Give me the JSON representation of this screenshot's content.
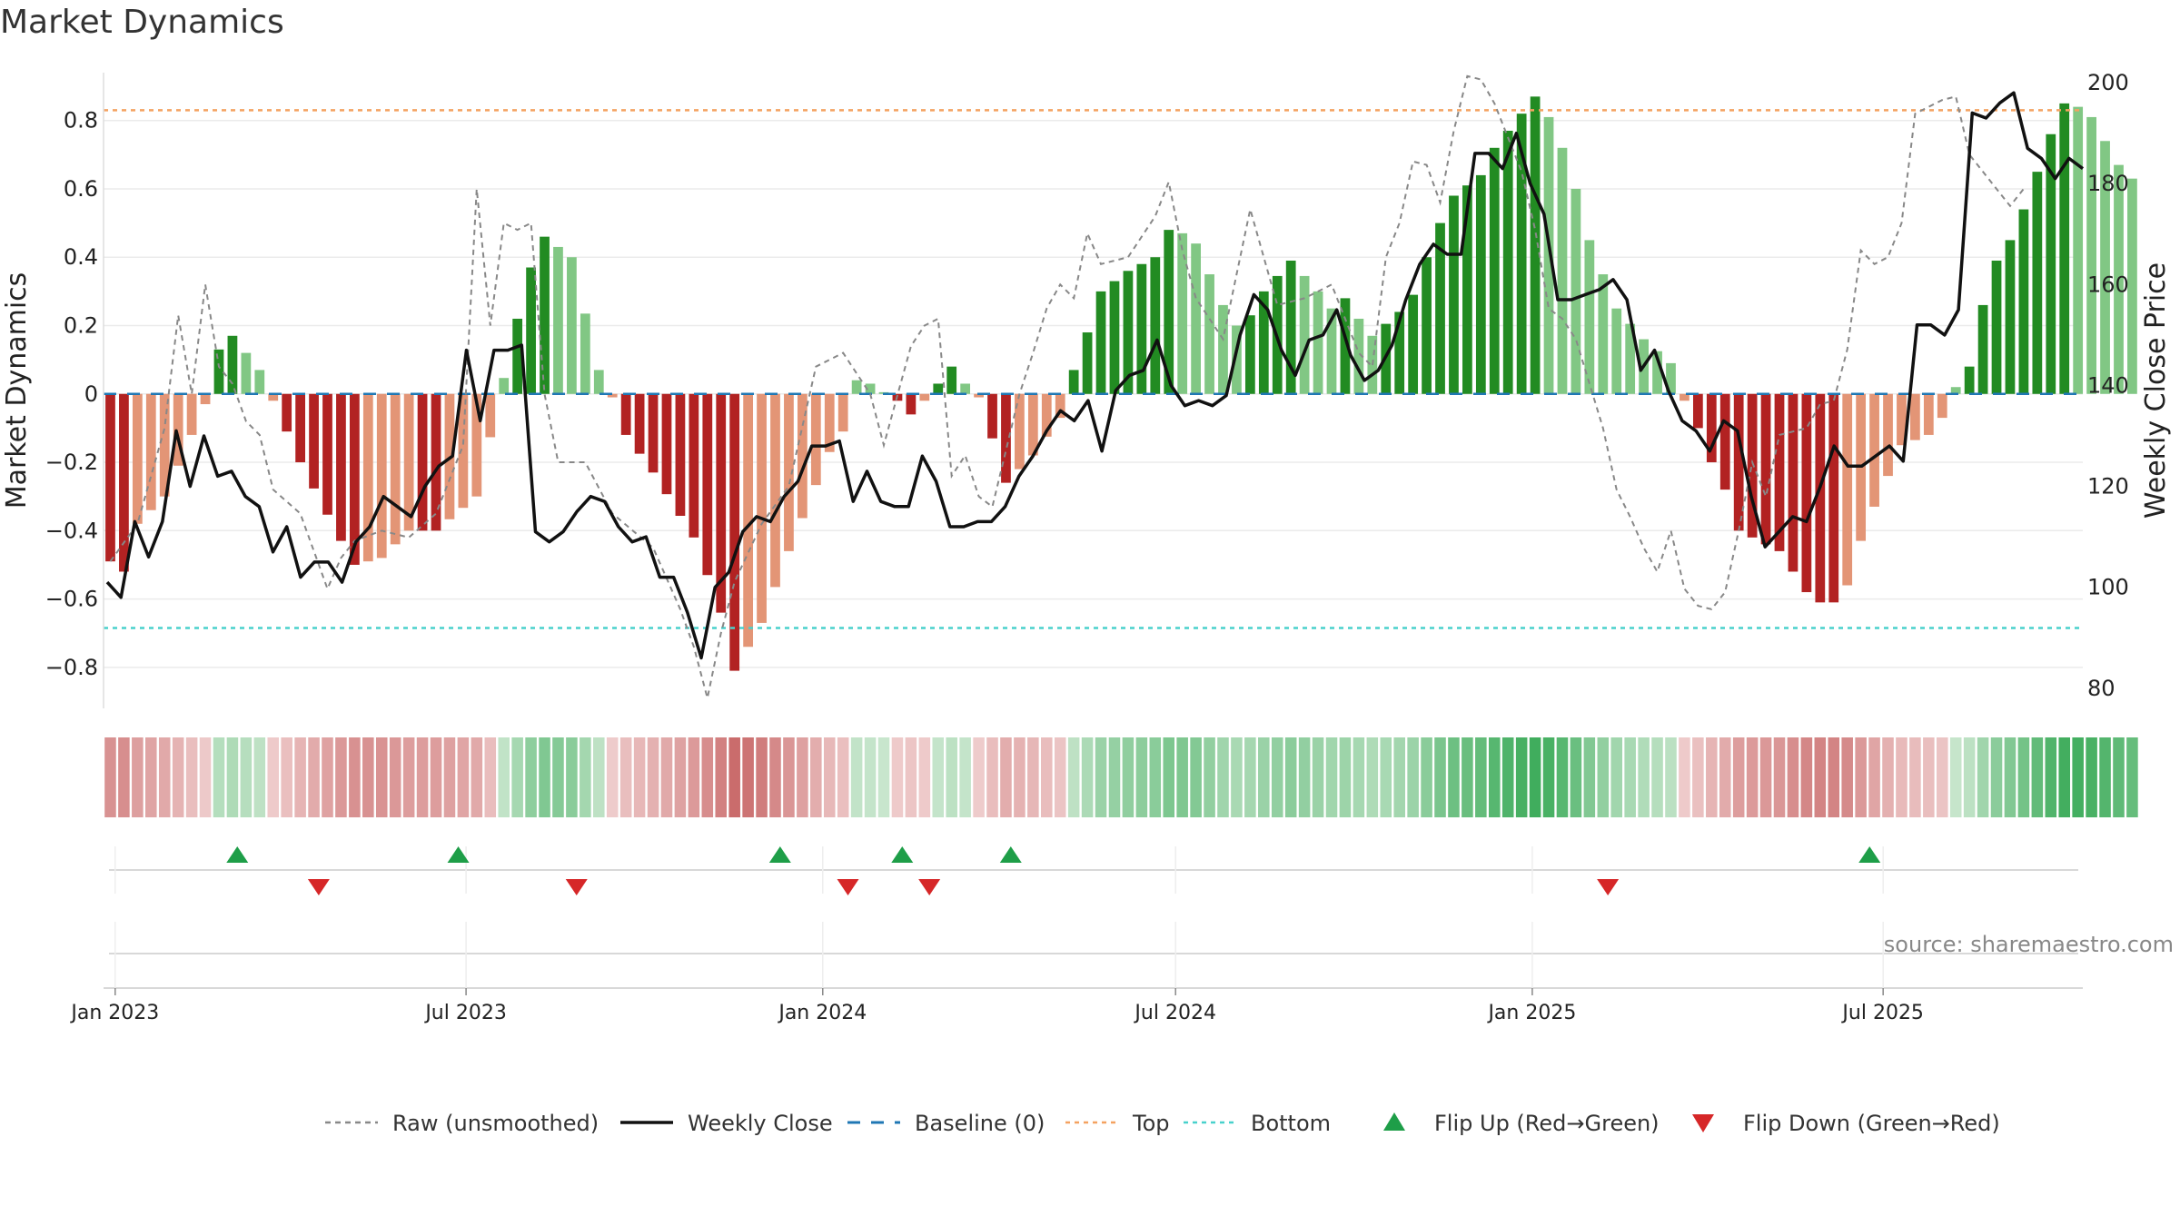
{
  "title": "Market Dynamics",
  "source": "source: sharemaestro.com",
  "chart_data": {
    "type": "bar",
    "title": "Market Dynamics",
    "ylabel": "Market Dynamics",
    "y2label": "Weekly Close Price",
    "ylim": [
      -0.92,
      0.94
    ],
    "y2lim": [
      76,
      202
    ],
    "yticks": [
      "0.8",
      "0.6",
      "0.4",
      "0.2",
      "0",
      "−0.2",
      "−0.4",
      "−0.6",
      "−0.8"
    ],
    "ytick_values": [
      0.8,
      0.6,
      0.4,
      0.2,
      0,
      -0.2,
      -0.4,
      -0.6,
      -0.8
    ],
    "y2ticks": [
      "200",
      "180",
      "160",
      "140",
      "120",
      "100",
      "80"
    ],
    "y2tick_values": [
      200,
      180,
      160,
      140,
      120,
      100,
      80
    ],
    "xdomain": [
      "2022-12-26",
      "2025-10-12"
    ],
    "date_ticks": [
      {
        "label": "Jan 2023",
        "date": "2023-01-01"
      },
      {
        "label": "Jul 2023",
        "date": "2023-07-01"
      },
      {
        "label": "Jan 2024",
        "date": "2024-01-01"
      },
      {
        "label": "Jul 2024",
        "date": "2024-07-01"
      },
      {
        "label": "Jan 2025",
        "date": "2025-01-01"
      },
      {
        "label": "Jul 2025",
        "date": "2025-07-01"
      }
    ],
    "top_level": 0.83,
    "bottom_level": -0.685,
    "grid": true,
    "legend_position": "bottom-center",
    "colors": {
      "strong_green": "#228b22",
      "light_green": "#81c784",
      "strong_red": "#b22222",
      "light_red": "#e39576",
      "close": "#111111",
      "raw": "#888888",
      "baseline": "#1f77b4",
      "top": "#f4a261",
      "bottom": "#48d1cc",
      "flip_up": "#1e9e48",
      "flip_down": "#d62728"
    },
    "dynamics_anchors": [
      [
        0,
        -0.49
      ],
      [
        1,
        -0.52
      ],
      [
        2,
        -0.38
      ],
      [
        4,
        -0.3
      ],
      [
        7,
        -0.03
      ],
      [
        8,
        0.13
      ],
      [
        9,
        0.17
      ],
      [
        11,
        0.07
      ],
      [
        12,
        -0.02
      ],
      [
        14,
        -0.2
      ],
      [
        17,
        -0.43
      ],
      [
        18,
        -0.5
      ],
      [
        20,
        -0.48
      ],
      [
        22,
        -0.4
      ],
      [
        24,
        -0.4
      ],
      [
        27,
        -0.3
      ],
      [
        30,
        0.22
      ],
      [
        31,
        0.37
      ],
      [
        32,
        0.46
      ],
      [
        34,
        0.4
      ],
      [
        36,
        0.07
      ],
      [
        37,
        -0.01
      ],
      [
        38,
        -0.12
      ],
      [
        40,
        -0.23
      ],
      [
        43,
        -0.42
      ],
      [
        45,
        -0.64
      ],
      [
        46,
        -0.81
      ],
      [
        47,
        -0.74
      ],
      [
        48,
        -0.67
      ],
      [
        50,
        -0.46
      ],
      [
        53,
        -0.17
      ],
      [
        54,
        -0.11
      ],
      [
        55,
        0.04
      ],
      [
        56,
        0.03
      ],
      [
        58,
        -0.02
      ],
      [
        59,
        -0.06
      ],
      [
        60,
        -0.02
      ],
      [
        62,
        0.08
      ],
      [
        63,
        0.03
      ],
      [
        64,
        -0.01
      ],
      [
        65,
        -0.13
      ],
      [
        66,
        -0.26
      ],
      [
        68,
        -0.18
      ],
      [
        70,
        -0.07
      ],
      [
        71,
        0.07
      ],
      [
        72,
        0.18
      ],
      [
        73,
        0.3
      ],
      [
        75,
        0.36
      ],
      [
        77,
        0.4
      ],
      [
        78,
        0.48
      ],
      [
        79,
        0.47
      ],
      [
        80,
        0.44
      ],
      [
        82,
        0.26
      ],
      [
        83,
        0.2
      ],
      [
        84,
        0.23
      ],
      [
        85,
        0.3
      ],
      [
        87,
        0.39
      ],
      [
        89,
        0.3
      ],
      [
        90,
        0.25
      ],
      [
        91,
        0.28
      ],
      [
        92,
        0.22
      ],
      [
        93,
        0.17
      ],
      [
        95,
        0.24
      ],
      [
        96,
        0.29
      ],
      [
        97,
        0.4
      ],
      [
        98,
        0.5
      ],
      [
        99,
        0.58
      ],
      [
        101,
        0.64
      ],
      [
        102,
        0.72
      ],
      [
        104,
        0.82
      ],
      [
        105,
        0.87
      ],
      [
        106,
        0.81
      ],
      [
        107,
        0.72
      ],
      [
        108,
        0.6
      ],
      [
        109,
        0.45
      ],
      [
        111,
        0.25
      ],
      [
        113,
        0.16
      ],
      [
        115,
        0.09
      ],
      [
        116,
        -0.02
      ],
      [
        117,
        -0.1
      ],
      [
        118,
        -0.2
      ],
      [
        119,
        -0.28
      ],
      [
        120,
        -0.4
      ],
      [
        123,
        -0.46
      ],
      [
        125,
        -0.58
      ],
      [
        126,
        -0.61
      ],
      [
        127,
        -0.61
      ],
      [
        128,
        -0.56
      ],
      [
        129,
        -0.43
      ],
      [
        130,
        -0.33
      ],
      [
        131,
        -0.24
      ],
      [
        132,
        -0.15
      ],
      [
        134,
        -0.12
      ],
      [
        135,
        -0.07
      ],
      [
        136,
        0.02
      ],
      [
        137,
        0.08
      ],
      [
        138,
        0.26
      ],
      [
        139,
        0.39
      ],
      [
        140,
        0.45
      ],
      [
        141,
        0.54
      ],
      [
        142,
        0.65
      ],
      [
        143,
        0.76
      ],
      [
        144,
        0.85
      ],
      [
        145,
        0.84
      ],
      [
        146,
        0.81
      ],
      [
        147,
        0.74
      ],
      [
        148,
        0.67
      ],
      [
        149,
        0.63
      ]
    ],
    "close_anchors": [
      [
        0,
        101
      ],
      [
        1,
        98
      ],
      [
        2,
        113
      ],
      [
        3,
        106
      ],
      [
        4,
        113
      ],
      [
        5,
        131
      ],
      [
        6,
        120
      ],
      [
        7,
        130
      ],
      [
        8,
        122
      ],
      [
        9,
        123
      ],
      [
        10,
        118
      ],
      [
        11,
        116
      ],
      [
        12,
        107
      ],
      [
        13,
        112
      ],
      [
        14,
        102
      ],
      [
        15,
        105
      ],
      [
        16,
        105
      ],
      [
        17,
        101
      ],
      [
        18,
        109
      ],
      [
        19,
        112
      ],
      [
        20,
        118
      ],
      [
        21,
        116
      ],
      [
        22,
        114
      ],
      [
        23,
        120
      ],
      [
        24,
        124
      ],
      [
        25,
        126
      ],
      [
        26,
        147
      ],
      [
        27,
        133
      ],
      [
        28,
        147
      ],
      [
        29,
        147
      ],
      [
        30,
        148
      ],
      [
        31,
        111
      ],
      [
        32,
        109
      ],
      [
        33,
        111
      ],
      [
        34,
        115
      ],
      [
        35,
        118
      ],
      [
        36,
        117
      ],
      [
        37,
        112
      ],
      [
        38,
        109
      ],
      [
        39,
        110
      ],
      [
        40,
        102
      ],
      [
        41,
        102
      ],
      [
        42,
        95
      ],
      [
        43,
        86
      ],
      [
        44,
        100
      ],
      [
        45,
        103
      ],
      [
        46,
        111
      ],
      [
        47,
        114
      ],
      [
        48,
        113
      ],
      [
        49,
        118
      ],
      [
        50,
        121
      ],
      [
        51,
        128
      ],
      [
        52,
        128
      ],
      [
        53,
        129
      ],
      [
        54,
        117
      ],
      [
        55,
        123
      ],
      [
        56,
        117
      ],
      [
        57,
        116
      ],
      [
        58,
        116
      ],
      [
        59,
        126
      ],
      [
        60,
        121
      ],
      [
        61,
        112
      ],
      [
        62,
        112
      ],
      [
        63,
        113
      ],
      [
        64,
        113
      ],
      [
        65,
        116
      ],
      [
        66,
        122
      ],
      [
        67,
        126
      ],
      [
        68,
        131
      ],
      [
        69,
        135
      ],
      [
        70,
        133
      ],
      [
        71,
        137
      ],
      [
        72,
        127
      ],
      [
        73,
        139
      ],
      [
        74,
        142
      ],
      [
        75,
        143
      ],
      [
        76,
        149
      ],
      [
        77,
        140
      ],
      [
        78,
        136
      ],
      [
        79,
        137
      ],
      [
        80,
        136
      ],
      [
        81,
        138
      ],
      [
        82,
        150
      ],
      [
        83,
        158
      ],
      [
        84,
        155
      ],
      [
        85,
        147
      ],
      [
        86,
        142
      ],
      [
        87,
        149
      ],
      [
        88,
        150
      ],
      [
        89,
        155
      ],
      [
        90,
        146
      ],
      [
        91,
        141
      ],
      [
        92,
        143
      ],
      [
        93,
        148
      ],
      [
        94,
        157
      ],
      [
        95,
        164
      ],
      [
        96,
        168
      ],
      [
        97,
        166
      ],
      [
        98,
        166
      ],
      [
        99,
        186
      ],
      [
        100,
        186
      ],
      [
        101,
        183
      ],
      [
        102,
        190
      ],
      [
        103,
        180
      ],
      [
        104,
        174
      ],
      [
        105,
        157
      ],
      [
        106,
        157
      ],
      [
        107,
        158
      ],
      [
        108,
        159
      ],
      [
        109,
        161
      ],
      [
        110,
        157
      ],
      [
        111,
        143
      ],
      [
        112,
        147
      ],
      [
        113,
        139
      ],
      [
        114,
        133
      ],
      [
        115,
        131
      ],
      [
        116,
        127
      ],
      [
        117,
        133
      ],
      [
        118,
        131
      ],
      [
        119,
        118
      ],
      [
        120,
        108
      ],
      [
        121,
        111
      ],
      [
        122,
        114
      ],
      [
        123,
        113
      ],
      [
        124,
        120
      ],
      [
        125,
        128
      ],
      [
        126,
        124
      ],
      [
        127,
        124
      ],
      [
        128,
        126
      ],
      [
        129,
        128
      ],
      [
        130,
        125
      ],
      [
        131,
        152
      ],
      [
        132,
        152
      ],
      [
        133,
        150
      ],
      [
        134,
        155
      ],
      [
        135,
        194
      ],
      [
        136,
        193
      ],
      [
        137,
        196
      ],
      [
        138,
        198
      ],
      [
        139,
        187
      ],
      [
        140,
        185
      ],
      [
        141,
        181
      ],
      [
        142,
        185
      ],
      [
        143,
        183
      ]
    ],
    "raw_anchors": [
      [
        0,
        -0.49
      ],
      [
        2,
        -0.38
      ],
      [
        4,
        -0.1
      ],
      [
        5,
        0.23
      ],
      [
        6,
        0.0
      ],
      [
        7,
        0.32
      ],
      [
        8,
        0.08
      ],
      [
        9,
        0.03
      ],
      [
        10,
        -0.08
      ],
      [
        11,
        -0.12
      ],
      [
        12,
        -0.28
      ],
      [
        14,
        -0.35
      ],
      [
        16,
        -0.57
      ],
      [
        17,
        -0.48
      ],
      [
        18,
        -0.43
      ],
      [
        20,
        -0.4
      ],
      [
        22,
        -0.42
      ],
      [
        24,
        -0.35
      ],
      [
        26,
        -0.15
      ],
      [
        27,
        0.6
      ],
      [
        28,
        0.2
      ],
      [
        29,
        0.5
      ],
      [
        30,
        0.48
      ],
      [
        31,
        0.5
      ],
      [
        32,
        0.0
      ],
      [
        33,
        -0.2
      ],
      [
        35,
        -0.2
      ],
      [
        37,
        -0.35
      ],
      [
        40,
        -0.45
      ],
      [
        42,
        -0.63
      ],
      [
        43,
        -0.74
      ],
      [
        44,
        -0.89
      ],
      [
        45,
        -0.7
      ],
      [
        46,
        -0.55
      ],
      [
        48,
        -0.38
      ],
      [
        50,
        -0.27
      ],
      [
        52,
        0.08
      ],
      [
        54,
        0.12
      ],
      [
        56,
        0.0
      ],
      [
        57,
        -0.15
      ],
      [
        59,
        0.14
      ],
      [
        60,
        0.2
      ],
      [
        61,
        0.22
      ],
      [
        62,
        -0.24
      ],
      [
        63,
        -0.18
      ],
      [
        64,
        -0.3
      ],
      [
        65,
        -0.33
      ],
      [
        67,
        0.0
      ],
      [
        68,
        0.12
      ],
      [
        69,
        0.25
      ],
      [
        70,
        0.32
      ],
      [
        71,
        0.28
      ],
      [
        72,
        0.47
      ],
      [
        73,
        0.38
      ],
      [
        75,
        0.4
      ],
      [
        77,
        0.52
      ],
      [
        78,
        0.62
      ],
      [
        79,
        0.42
      ],
      [
        80,
        0.28
      ],
      [
        82,
        0.16
      ],
      [
        83,
        0.35
      ],
      [
        84,
        0.54
      ],
      [
        85,
        0.4
      ],
      [
        86,
        0.26
      ],
      [
        88,
        0.28
      ],
      [
        90,
        0.32
      ],
      [
        92,
        0.12
      ],
      [
        93,
        0.08
      ],
      [
        94,
        0.4
      ],
      [
        95,
        0.5
      ],
      [
        96,
        0.68
      ],
      [
        97,
        0.67
      ],
      [
        98,
        0.56
      ],
      [
        99,
        0.77
      ],
      [
        100,
        0.93
      ],
      [
        101,
        0.92
      ],
      [
        102,
        0.85
      ],
      [
        103,
        0.75
      ],
      [
        104,
        0.65
      ],
      [
        105,
        0.48
      ],
      [
        106,
        0.25
      ],
      [
        107,
        0.22
      ],
      [
        108,
        0.16
      ],
      [
        110,
        -0.1
      ],
      [
        111,
        -0.28
      ],
      [
        112,
        -0.36
      ],
      [
        113,
        -0.45
      ],
      [
        114,
        -0.52
      ],
      [
        115,
        -0.4
      ],
      [
        116,
        -0.57
      ],
      [
        117,
        -0.62
      ],
      [
        118,
        -0.63
      ],
      [
        119,
        -0.58
      ],
      [
        120,
        -0.4
      ],
      [
        121,
        -0.2
      ],
      [
        122,
        -0.3
      ],
      [
        123,
        -0.12
      ],
      [
        125,
        -0.1
      ],
      [
        126,
        -0.03
      ],
      [
        127,
        -0.02
      ],
      [
        128,
        0.13
      ],
      [
        129,
        0.42
      ],
      [
        130,
        0.38
      ],
      [
        131,
        0.4
      ],
      [
        132,
        0.5
      ],
      [
        133,
        0.82
      ],
      [
        134,
        0.84
      ],
      [
        135,
        0.86
      ],
      [
        136,
        0.87
      ],
      [
        137,
        0.7
      ],
      [
        138,
        0.65
      ],
      [
        139,
        0.6
      ],
      [
        140,
        0.55
      ],
      [
        141,
        0.6
      ]
    ],
    "flip_up_dates": [
      "2023-03-05",
      "2023-06-27",
      "2023-12-10",
      "2024-02-11",
      "2024-04-07",
      "2025-06-24"
    ],
    "flip_down_dates": [
      "2023-04-16",
      "2023-08-27",
      "2024-01-14",
      "2024-02-25",
      "2025-02-09"
    ],
    "legend": [
      {
        "label": "Raw (unsmoothed)",
        "kind": "dashed-line",
        "color": "#888888"
      },
      {
        "label": "Weekly Close",
        "kind": "solid-line",
        "color": "#111111"
      },
      {
        "label": "Baseline (0)",
        "kind": "long-dash-line",
        "color": "#1f77b4"
      },
      {
        "label": "Top",
        "kind": "dotted-line",
        "color": "#f4a261"
      },
      {
        "label": "Bottom",
        "kind": "dotted-line",
        "color": "#48d1cc"
      },
      {
        "label": "Flip Up (Red→Green)",
        "kind": "triangle-up",
        "color": "#1e9e48"
      },
      {
        "label": "Flip Down (Green→Red)",
        "kind": "triangle-down",
        "color": "#d62728"
      }
    ]
  }
}
